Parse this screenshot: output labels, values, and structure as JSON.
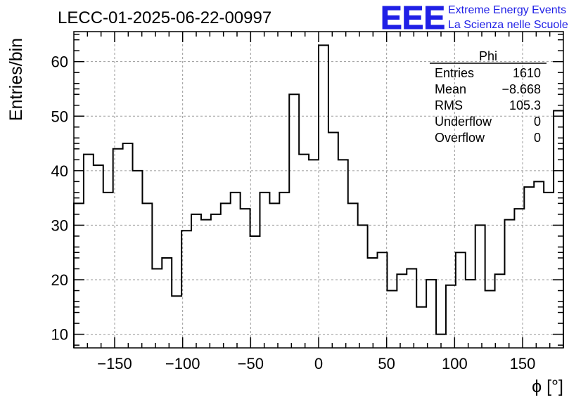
{
  "chart_data": {
    "type": "histogram",
    "title": "LECC-01-2025-06-22-00997",
    "xlabel": "ϕ [°]",
    "ylabel": "Entries/bin",
    "xlim": [
      -180,
      180
    ],
    "ylim": [
      7.5,
      65.5
    ],
    "bin_width": 7.2,
    "x_ticks": [
      -150,
      -100,
      -50,
      0,
      50,
      100,
      150
    ],
    "x_tick_labels": [
      "−150",
      "−100",
      "−50",
      "0",
      "50",
      "100",
      "150"
    ],
    "y_ticks": [
      10,
      20,
      30,
      40,
      50,
      60
    ],
    "y_tick_labels": [
      "10",
      "20",
      "30",
      "40",
      "50",
      "60"
    ],
    "grid": true,
    "values": [
      34,
      43,
      41,
      36,
      44,
      45,
      40,
      34,
      22,
      24,
      17,
      29,
      32,
      31,
      32,
      34,
      36,
      33,
      28,
      36,
      34,
      36,
      54,
      43,
      42,
      63,
      47,
      42,
      34,
      30,
      24,
      25,
      18,
      21,
      22,
      15,
      20,
      10,
      19,
      25,
      20,
      30,
      18,
      21,
      31,
      33,
      37,
      38,
      36,
      51
    ],
    "stats_box": {
      "name": "Phi",
      "rows": [
        {
          "label": "Entries",
          "value": "1610"
        },
        {
          "label": "Mean",
          "value": "−8.668"
        },
        {
          "label": "RMS",
          "value": "105.3"
        },
        {
          "label": "Underflow",
          "value": "0"
        },
        {
          "label": "Overflow",
          "value": "0"
        }
      ]
    }
  },
  "branding": {
    "logo": "EEE",
    "line1": "Extreme Energy Events",
    "line2": "La Scienza nelle Scuole",
    "color": "#1f1fe6"
  }
}
